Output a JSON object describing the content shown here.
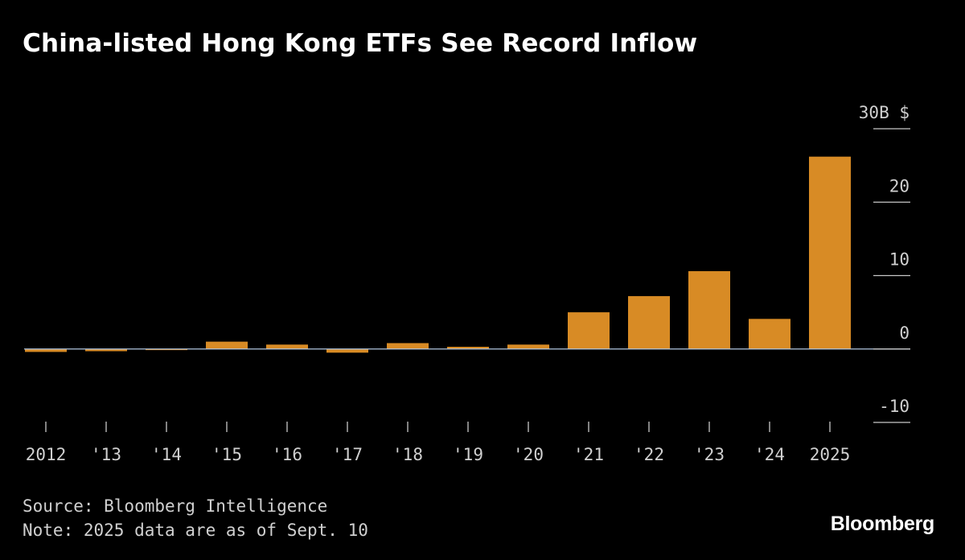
{
  "colors": {
    "background": "#000000",
    "bar": "#d88b25",
    "text": "#ffffff",
    "muted_text": "#d0d0d0",
    "axis": "#c8c8c8",
    "zero_line": "#b0c4de"
  },
  "title": "China-listed Hong Kong ETFs See Record Inflow",
  "footer": {
    "source": "Source: Bloomberg Intelligence",
    "note": "Note: 2025 data are as of Sept. 10",
    "logo": "Bloomberg"
  },
  "chart_data": {
    "type": "bar",
    "title": "China-listed Hong Kong ETFs See Record Inflow",
    "xlabel": "",
    "ylabel": "",
    "categories": [
      "2012",
      "'13",
      "'14",
      "'15",
      "'16",
      "'17",
      "'18",
      "'19",
      "'20",
      "'21",
      "'22",
      "'23",
      "'24",
      "2025"
    ],
    "values": [
      -0.4,
      -0.3,
      -0.15,
      1.0,
      0.6,
      -0.5,
      0.8,
      0.3,
      0.6,
      5.0,
      7.2,
      10.6,
      4.1,
      26.2
    ],
    "ylim": [
      -10,
      30
    ],
    "yticks": [
      -10,
      0,
      10,
      20,
      30
    ],
    "ytick_labels": [
      "-10",
      "0",
      "10",
      "20",
      "30B $"
    ],
    "y_axis_side": "right",
    "grid": false,
    "legend": "none"
  }
}
